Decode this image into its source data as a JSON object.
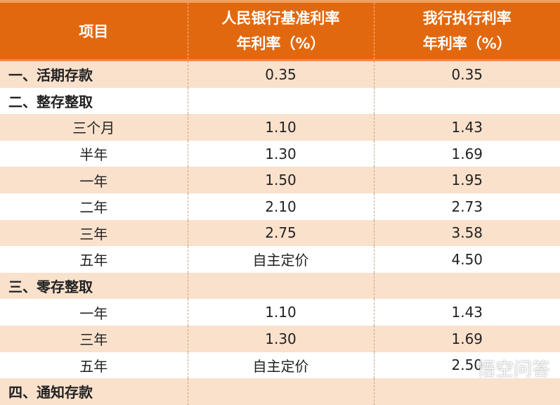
{
  "header": {
    "col1": "项目",
    "col2_line1": "人民银行基准利率",
    "col2_line2": "年利率（%）",
    "col3_line1": "我行执行利率",
    "col3_line2": "年利率（%）"
  },
  "rows": [
    {
      "item": "一、活期存款",
      "type": "section",
      "pboc": "0.35",
      "bank": "0.35"
    },
    {
      "item": "二、整存整取",
      "type": "section",
      "pboc": "",
      "bank": ""
    },
    {
      "item": "三个月",
      "type": "sub",
      "pboc": "1.10",
      "bank": "1.43"
    },
    {
      "item": "半年",
      "type": "sub",
      "pboc": "1.30",
      "bank": "1.69"
    },
    {
      "item": "一年",
      "type": "sub",
      "pboc": "1.50",
      "bank": "1.95"
    },
    {
      "item": "二年",
      "type": "sub",
      "pboc": "2.10",
      "bank": "2.73"
    },
    {
      "item": "三年",
      "type": "sub",
      "pboc": "2.75",
      "bank": "3.58"
    },
    {
      "item": "五年",
      "type": "sub",
      "pboc": "自主定价",
      "bank": "4.50"
    },
    {
      "item": "三、零存整取",
      "type": "section",
      "pboc": "",
      "bank": ""
    },
    {
      "item": "一年",
      "type": "sub",
      "pboc": "1.10",
      "bank": "1.43"
    },
    {
      "item": "三年",
      "type": "sub",
      "pboc": "1.30",
      "bank": "1.69"
    },
    {
      "item": "五年",
      "type": "sub",
      "pboc": "自主定价",
      "bank": "2.50"
    },
    {
      "item": "四、通知存款",
      "type": "section",
      "pboc": "",
      "bank": ""
    }
  ],
  "watermark": "悟空问答",
  "colors": {
    "header_bg": "#e2680f",
    "stripe": "#fae1cc"
  }
}
